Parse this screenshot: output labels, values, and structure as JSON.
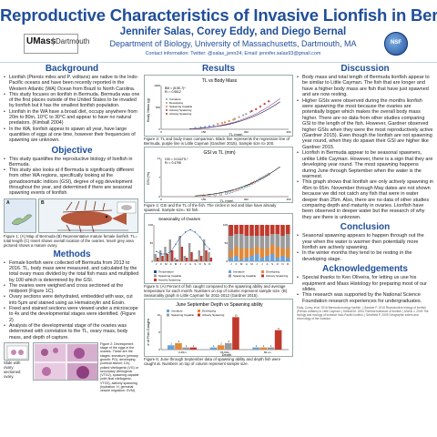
{
  "header": {
    "title": "Reproductive Characteristics of Invasive Lionfish in Bermuda",
    "authors": "Jennifer Salas, Corey Eddy, and Diego Bernal",
    "department": "Department of Biology, University of Massachusetts, Dartmouth, MA",
    "contact": "Contact information: Twitter: @salas_jenn24; Email: jennifer.salas93@gmail.com",
    "logo_left_a": "UMass",
    "logo_left_b": "Dartmouth",
    "logo_right": "NSF"
  },
  "background": {
    "heading": "Background",
    "bullets": [
      "Lionfish (Pterois miles and P. volitans) are native to the Indo-Pacific oceans and have been recently reported in the Western Atlantic (WA) Ocean from Brazil to North Carolina.",
      "This study focuses on lionfish in Bermuda. Bermuda was one of the first places outside of the United States to be invaded by lionfish but it has the smallest lionfish population.",
      "Lionfish in the WA have a broad diet, occupy anywhere from 20m to 80m, 10°C to 30°C and appear to have no natural predators. (Kimball 2004)",
      "In the WA, lionfish appear to spawn all year, have large quantities of eggs at one time, however their frequencies of spawning are unknown."
    ]
  },
  "objective": {
    "heading": "Objective",
    "bullets": [
      "This study quantifies the reproductive biology of lionfish in Bermuda.",
      "This study also looks at if Bermuda is significantly different from other WA regions, specifically looking at the gonadosomatic indices (GSI), degree of egg development throughout the year, and determined if there are seasonal spawning events of lionfish."
    ],
    "fig1_label_a": "A",
    "fig1_label_b": "B",
    "fig1_caption": "Figure 1: (A) Map of Bermuda (B) Representative mature female lionfish. TL= total length (C) Insert shows overall location of the ovaries. Insert grey area pictured shows a mature ovary."
  },
  "methods": {
    "heading": "Methods",
    "bullets": [
      "Female lionfish were collected off Bermuda from 2013 to 2016. TL, body mass were measured, and calculated by the total ovary mass divided by the total fish mass and multiplied by 100 which is determined by the GSI.",
      "The ovaries were weighed and cross sectioned at the midpoint (Figure 1C).",
      "Ovary sections were dehydrated, embedded with wax, cut into 5μm and stained using as Hematoxylin and Eosin.",
      "Fixed and stained sections were viewed under a microscope to 4x and the developmental stages were identified. (Figure 2)",
      "Analysis of the developmental stage of the ovaries was determined with correlation to the TL, ovary mass, body mass, and depth of capture."
    ],
    "slide_caption": "Slide with ovary sectioned ovary.",
    "fig2_caption": "Figure 2: Development stage of the eggs in the ovaries. These are the stages: immature (primary growth: PG), developing (cortical alveoli; CA), yolked vitellogenic (VG) or secondary vitellogenic (VTG2), spawning capable (with final vitellogenic, VTG3), actively spawning (hydration: H, germinal vesicle migration: GVM)."
  },
  "results": {
    "heading": "Results",
    "fig3": {
      "title": "TL vs Body Mass",
      "ylabel": "Body Mass (g)",
      "xlabel": "TL (mm)",
      "equation": "BM = (8.5E-7)^",
      "equation2": "R² = 0.9812",
      "legend": [
        "Immature",
        "Developing",
        "Spawning Capable",
        "Actively Spawning",
        "Actively Spawning"
      ],
      "caption": "Figure 3: TL and body mass comparison. Black line represents the regression line of Bermuda, purple line is Little Cayman (Gardner 2015). Sample size n≥ 200."
    },
    "fig4": {
      "title": "GSI vs TL (mm)",
      "ylabel": "GSI (%)",
      "xlabel": "TL (mm)",
      "equation": "GSI = 0.0142TL^",
      "equation2": "R² = 0.4798",
      "caption": "Figure 4: GSI and the TL of the fish. The circles in red and blue have already spawned. Sample size= 63 fish."
    },
    "fig5": {
      "title_a": "Seasonality of Ovaries",
      "title_b": "",
      "legend_b": [
        "Immature",
        "Developing",
        "Spawning Capable",
        "Actively Spawning"
      ],
      "legend_a": [
        "Temperature",
        "Spawning Capable",
        "Actively Spawning"
      ],
      "caption": "Figure 5: (A) Percent of fish caught compared to the spawning ability and average temperature for each month. Numbers on top of column represent sample size. (B) Seasonality graph in Little Cayman for 2011-2012 (Gardner 2015)."
    },
    "fig6": {
      "title": "June September Depth vs Spawning ability",
      "ylabel": "# of Fish Caught",
      "xlabel": "Depth",
      "legend": [
        "Immature",
        "Developing",
        "Spawning Capable",
        "Actively Spawning"
      ],
      "caption": "Figure 6: June through September data of spawning ability and depth fish were caught at. Numbers on top of column represent sample size."
    }
  },
  "chart_data": [
    {
      "type": "scatter",
      "title": "TL vs Body Mass",
      "xlabel": "TL (mm)",
      "ylabel": "Body Mass (g)",
      "series": [
        {
          "name": "Immature",
          "x": [
            120,
            140,
            155,
            170,
            185
          ],
          "y": [
            30,
            45,
            55,
            70,
            90
          ]
        },
        {
          "name": "Developing",
          "x": [
            200,
            215,
            225,
            240,
            255
          ],
          "y": [
            120,
            140,
            160,
            190,
            220
          ]
        },
        {
          "name": "Spawning Capable",
          "x": [
            260,
            275,
            290,
            300,
            315
          ],
          "y": [
            240,
            280,
            320,
            350,
            400
          ]
        },
        {
          "name": "Actively Spawning",
          "x": [
            320,
            335,
            350,
            365,
            380
          ],
          "y": [
            420,
            460,
            520,
            580,
            640
          ]
        }
      ],
      "ylim": [
        0,
        1000
      ],
      "xlim": [
        0,
        450
      ]
    },
    {
      "type": "scatter",
      "title": "GSI vs TL (mm)",
      "xlabel": "TL (mm)",
      "ylabel": "GSI (%)",
      "series": [
        {
          "x": [
            150,
            170,
            190,
            210,
            230,
            240,
            250,
            260,
            270,
            280,
            290,
            300,
            310,
            320,
            330,
            340,
            350,
            360,
            370,
            380
          ],
          "y": [
            0.3,
            0.5,
            0.7,
            0.9,
            1.2,
            1.5,
            1.8,
            2.2,
            2.5,
            3.0,
            3.3,
            3.8,
            4.2,
            4.8,
            5.3,
            5.8,
            6.5,
            7.0,
            7.6,
            8.2
          ]
        }
      ],
      "ylim": [
        0,
        14
      ],
      "xlim": [
        0,
        450
      ]
    },
    {
      "type": "bar",
      "title": "Seasonality of Ovaries",
      "categories": [
        "J",
        "F",
        "M",
        "A",
        "M",
        "J",
        "J",
        "A",
        "S",
        "O",
        "N",
        "D"
      ],
      "series": [
        {
          "name": "Spawning Capable",
          "values": [
            20,
            30,
            40,
            60,
            10,
            70,
            15,
            50,
            5,
            30,
            60,
            25
          ]
        },
        {
          "name": "Actively Spawning",
          "values": [
            10,
            15,
            20,
            30,
            5,
            40,
            10,
            25,
            5,
            15,
            30,
            10
          ]
        },
        {
          "name": "Temperature",
          "values": [
            19,
            18,
            18,
            19,
            22,
            25,
            27,
            28,
            27,
            25,
            22,
            20
          ]
        }
      ],
      "ylim": [
        0,
        100
      ]
    },
    {
      "type": "bar",
      "title": "",
      "categories": [
        "J",
        "F",
        "M",
        "A",
        "M",
        "J",
        "J",
        "A",
        "S",
        "O",
        "N",
        "D"
      ],
      "series": [
        {
          "name": "Immature",
          "values": [
            10,
            15,
            5,
            10,
            15,
            20,
            10,
            15,
            20,
            10,
            15,
            10
          ]
        },
        {
          "name": "Developing",
          "values": [
            20,
            25,
            30,
            25,
            20,
            20,
            25,
            20,
            25,
            30,
            20,
            25
          ]
        },
        {
          "name": "Spawning Capable",
          "values": [
            40,
            35,
            40,
            35,
            35,
            30,
            35,
            35,
            30,
            35,
            35,
            40
          ]
        },
        {
          "name": "Actively Spawning",
          "values": [
            30,
            25,
            25,
            30,
            30,
            30,
            30,
            30,
            25,
            25,
            30,
            25
          ]
        }
      ],
      "ylim": [
        0,
        100
      ]
    },
    {
      "type": "bar",
      "title": "June September Depth vs Spawning ability",
      "xlabel": "Depth",
      "ylabel": "# of Fish Caught",
      "categories": [
        "0-45m",
        "45-60m",
        "60+m"
      ],
      "series": [
        {
          "name": "Immature",
          "values": [
            2,
            1,
            1
          ]
        },
        {
          "name": "Developing",
          "values": [
            3,
            2,
            1
          ]
        },
        {
          "name": "Spawning Capable",
          "values": [
            1,
            3,
            1
          ]
        },
        {
          "name": "Actively Spawning",
          "values": [
            1,
            15,
            9
          ]
        }
      ],
      "ylim": [
        0,
        16
      ]
    }
  ],
  "discussion": {
    "heading": "Discussion",
    "bullets": [
      "Body mass and total length of Bermuda lionfish appear to be similar to Little Cayman. The fish that are longer and have a higher body mass are fish that have just spawned and are now resting.",
      "Higher GSIs were observed during the months lionfish were spawning the most because the ovaries are potentially bigger which makes the overall body mass higher. There are no data from other studies comparing GSI to the length of the fish. However, Gardner observed higher GSIs when they were the most reproductively active (Gardner 2015). Even though the lionfish are not spawning year round, when they do spawn their GSI are higher like Gardner 2015.",
      "Lionfish in Bermuda appear to be seasonal spawners, unlike Little Cayman. However, there is a sign that they are developing year round. The most spawning happens during June through September when the water is the warmest.",
      "This graph shows that lionfish are only actively spawning in 45m to 65m. November through May dates are not shown because we did not catch any fish that were in water deeper than 25m. Also, there are no data of other studies comparing depth and maturity in ovaries. Lionfish have been observed in deeper water but the research of why they are there is unknown."
    ]
  },
  "conclusion": {
    "heading": "Conclusion",
    "bullets": [
      "Seasonal spawning appears to happen through out the year when the water is warmer then potentially more lionfish are actively spawning.",
      "In the winter months they tend to be resting in the developing stage."
    ]
  },
  "acknowledgements": {
    "heading": "Acknowledgements",
    "bullets": [
      "Special thanks to Ken Oliveira, for letting us use his equipment and Mass Histology for preparing most of our slides.",
      "This research was supported by the National Science Foundation research experiences for undergraduates."
    ],
    "references": "Eddy, Corey, et al. 2016 Bermuda ecology lionfish. | Gardner P. 2015 Reproductive biology of lionfish (Pterois volitans) in Little Cayman. | Kimball M. 2004 Thermal tolerance of lionfish. | Morris J. 2009 The biology and ecology of invasive Indo-Pacific lionfish. | Schofield P. 2009 Geographic extent and chronology of the invasion."
  },
  "colors": {
    "title": "#1f4e9a",
    "immature": "#6aa2d8",
    "developing": "#e08a3a",
    "spawning_capable": "#9b9b9b",
    "actively_spawning": "#c0392b"
  }
}
